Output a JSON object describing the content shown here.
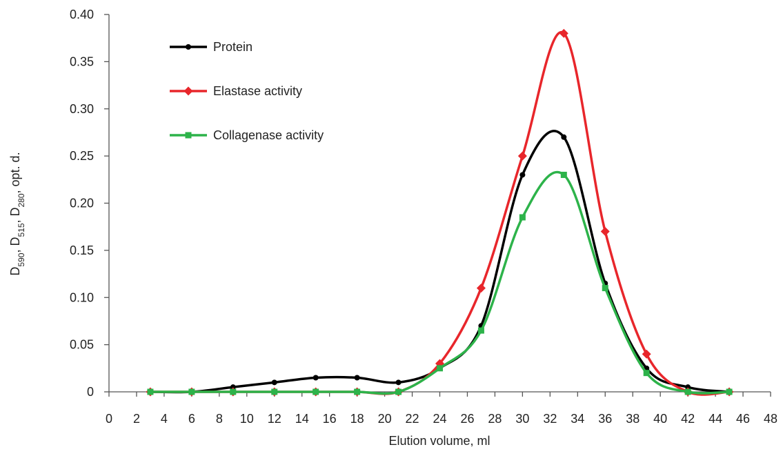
{
  "chart_data": {
    "type": "line",
    "x_label": "Elution volume, ml",
    "y_label_parts": [
      "D",
      "590",
      ", D",
      "515",
      ", D",
      "280",
      ", opt. d."
    ],
    "x": [
      3,
      6,
      9,
      12,
      15,
      18,
      21,
      24,
      27,
      30,
      33,
      36,
      39,
      42,
      45
    ],
    "series": [
      {
        "name": "Protein",
        "color": "#000000",
        "marker": "circle",
        "values": [
          0,
          0,
          0.005,
          0.01,
          0.015,
          0.015,
          0.01,
          0.025,
          0.07,
          0.23,
          0.27,
          0.115,
          0.025,
          0.005,
          0
        ]
      },
      {
        "name": "Elastase activity",
        "color": "#e8262b",
        "marker": "diamond",
        "values": [
          0,
          0,
          0,
          0,
          0,
          0,
          0,
          0.03,
          0.11,
          0.25,
          0.38,
          0.17,
          0.04,
          0,
          0
        ]
      },
      {
        "name": "Collagenase activity",
        "color": "#2db34a",
        "marker": "square",
        "values": [
          0,
          0,
          0,
          0,
          0,
          0,
          0,
          0.025,
          0.065,
          0.185,
          0.23,
          0.11,
          0.02,
          0,
          0
        ]
      }
    ],
    "xlim": [
      0,
      48
    ],
    "xticks": [
      0,
      2,
      4,
      6,
      8,
      10,
      12,
      14,
      16,
      18,
      20,
      22,
      24,
      26,
      28,
      30,
      32,
      34,
      36,
      38,
      40,
      42,
      44,
      46,
      48
    ],
    "ylim": [
      0,
      0.4
    ],
    "yticks": [
      0,
      0.05,
      {
        "value": 0.1,
        "label": "0.10"
      },
      0.15,
      {
        "value": 0.2,
        "label": "0.20"
      },
      0.25,
      {
        "value": 0.3,
        "label": "0.30"
      },
      0.35,
      {
        "value": 0.4,
        "label": "0.40"
      }
    ],
    "smooth": true,
    "grid": false,
    "legend": "upper left"
  }
}
